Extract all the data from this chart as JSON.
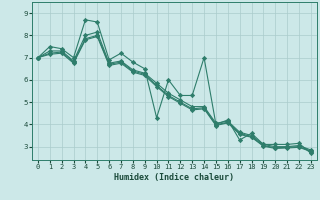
{
  "title": "",
  "xlabel": "Humidex (Indice chaleur)",
  "bg_color": "#cce8e8",
  "line_color": "#2e7d6b",
  "grid_color": "#aacccc",
  "xlim": [
    -0.5,
    23.5
  ],
  "ylim": [
    2.4,
    9.5
  ],
  "yticks": [
    3,
    4,
    5,
    6,
    7,
    8,
    9
  ],
  "xticks": [
    0,
    1,
    2,
    3,
    4,
    5,
    6,
    7,
    8,
    9,
    10,
    11,
    12,
    13,
    14,
    15,
    16,
    17,
    18,
    19,
    20,
    21,
    22,
    23
  ],
  "series": [
    [
      7.0,
      7.5,
      7.4,
      7.0,
      8.7,
      8.6,
      6.9,
      7.2,
      6.8,
      6.5,
      4.3,
      6.0,
      5.3,
      5.3,
      7.0,
      4.0,
      4.2,
      3.3,
      3.6,
      3.1,
      3.1,
      3.1,
      3.15,
      2.7
    ],
    [
      7.0,
      7.3,
      7.3,
      6.85,
      8.0,
      8.15,
      6.75,
      6.85,
      6.45,
      6.3,
      5.85,
      5.4,
      5.1,
      4.8,
      4.8,
      4.05,
      4.15,
      3.65,
      3.5,
      3.1,
      3.0,
      3.0,
      3.05,
      2.85
    ],
    [
      7.0,
      7.2,
      7.25,
      6.8,
      7.85,
      8.0,
      6.7,
      6.8,
      6.4,
      6.25,
      5.75,
      5.3,
      5.0,
      4.7,
      4.75,
      3.98,
      4.1,
      3.6,
      3.45,
      3.05,
      2.95,
      2.97,
      3.0,
      2.8
    ],
    [
      7.0,
      7.15,
      7.2,
      6.75,
      7.8,
      7.95,
      6.65,
      6.75,
      6.35,
      6.2,
      5.7,
      5.25,
      4.95,
      4.65,
      4.7,
      3.95,
      4.07,
      3.55,
      3.42,
      3.02,
      2.92,
      2.94,
      2.97,
      2.78
    ]
  ]
}
